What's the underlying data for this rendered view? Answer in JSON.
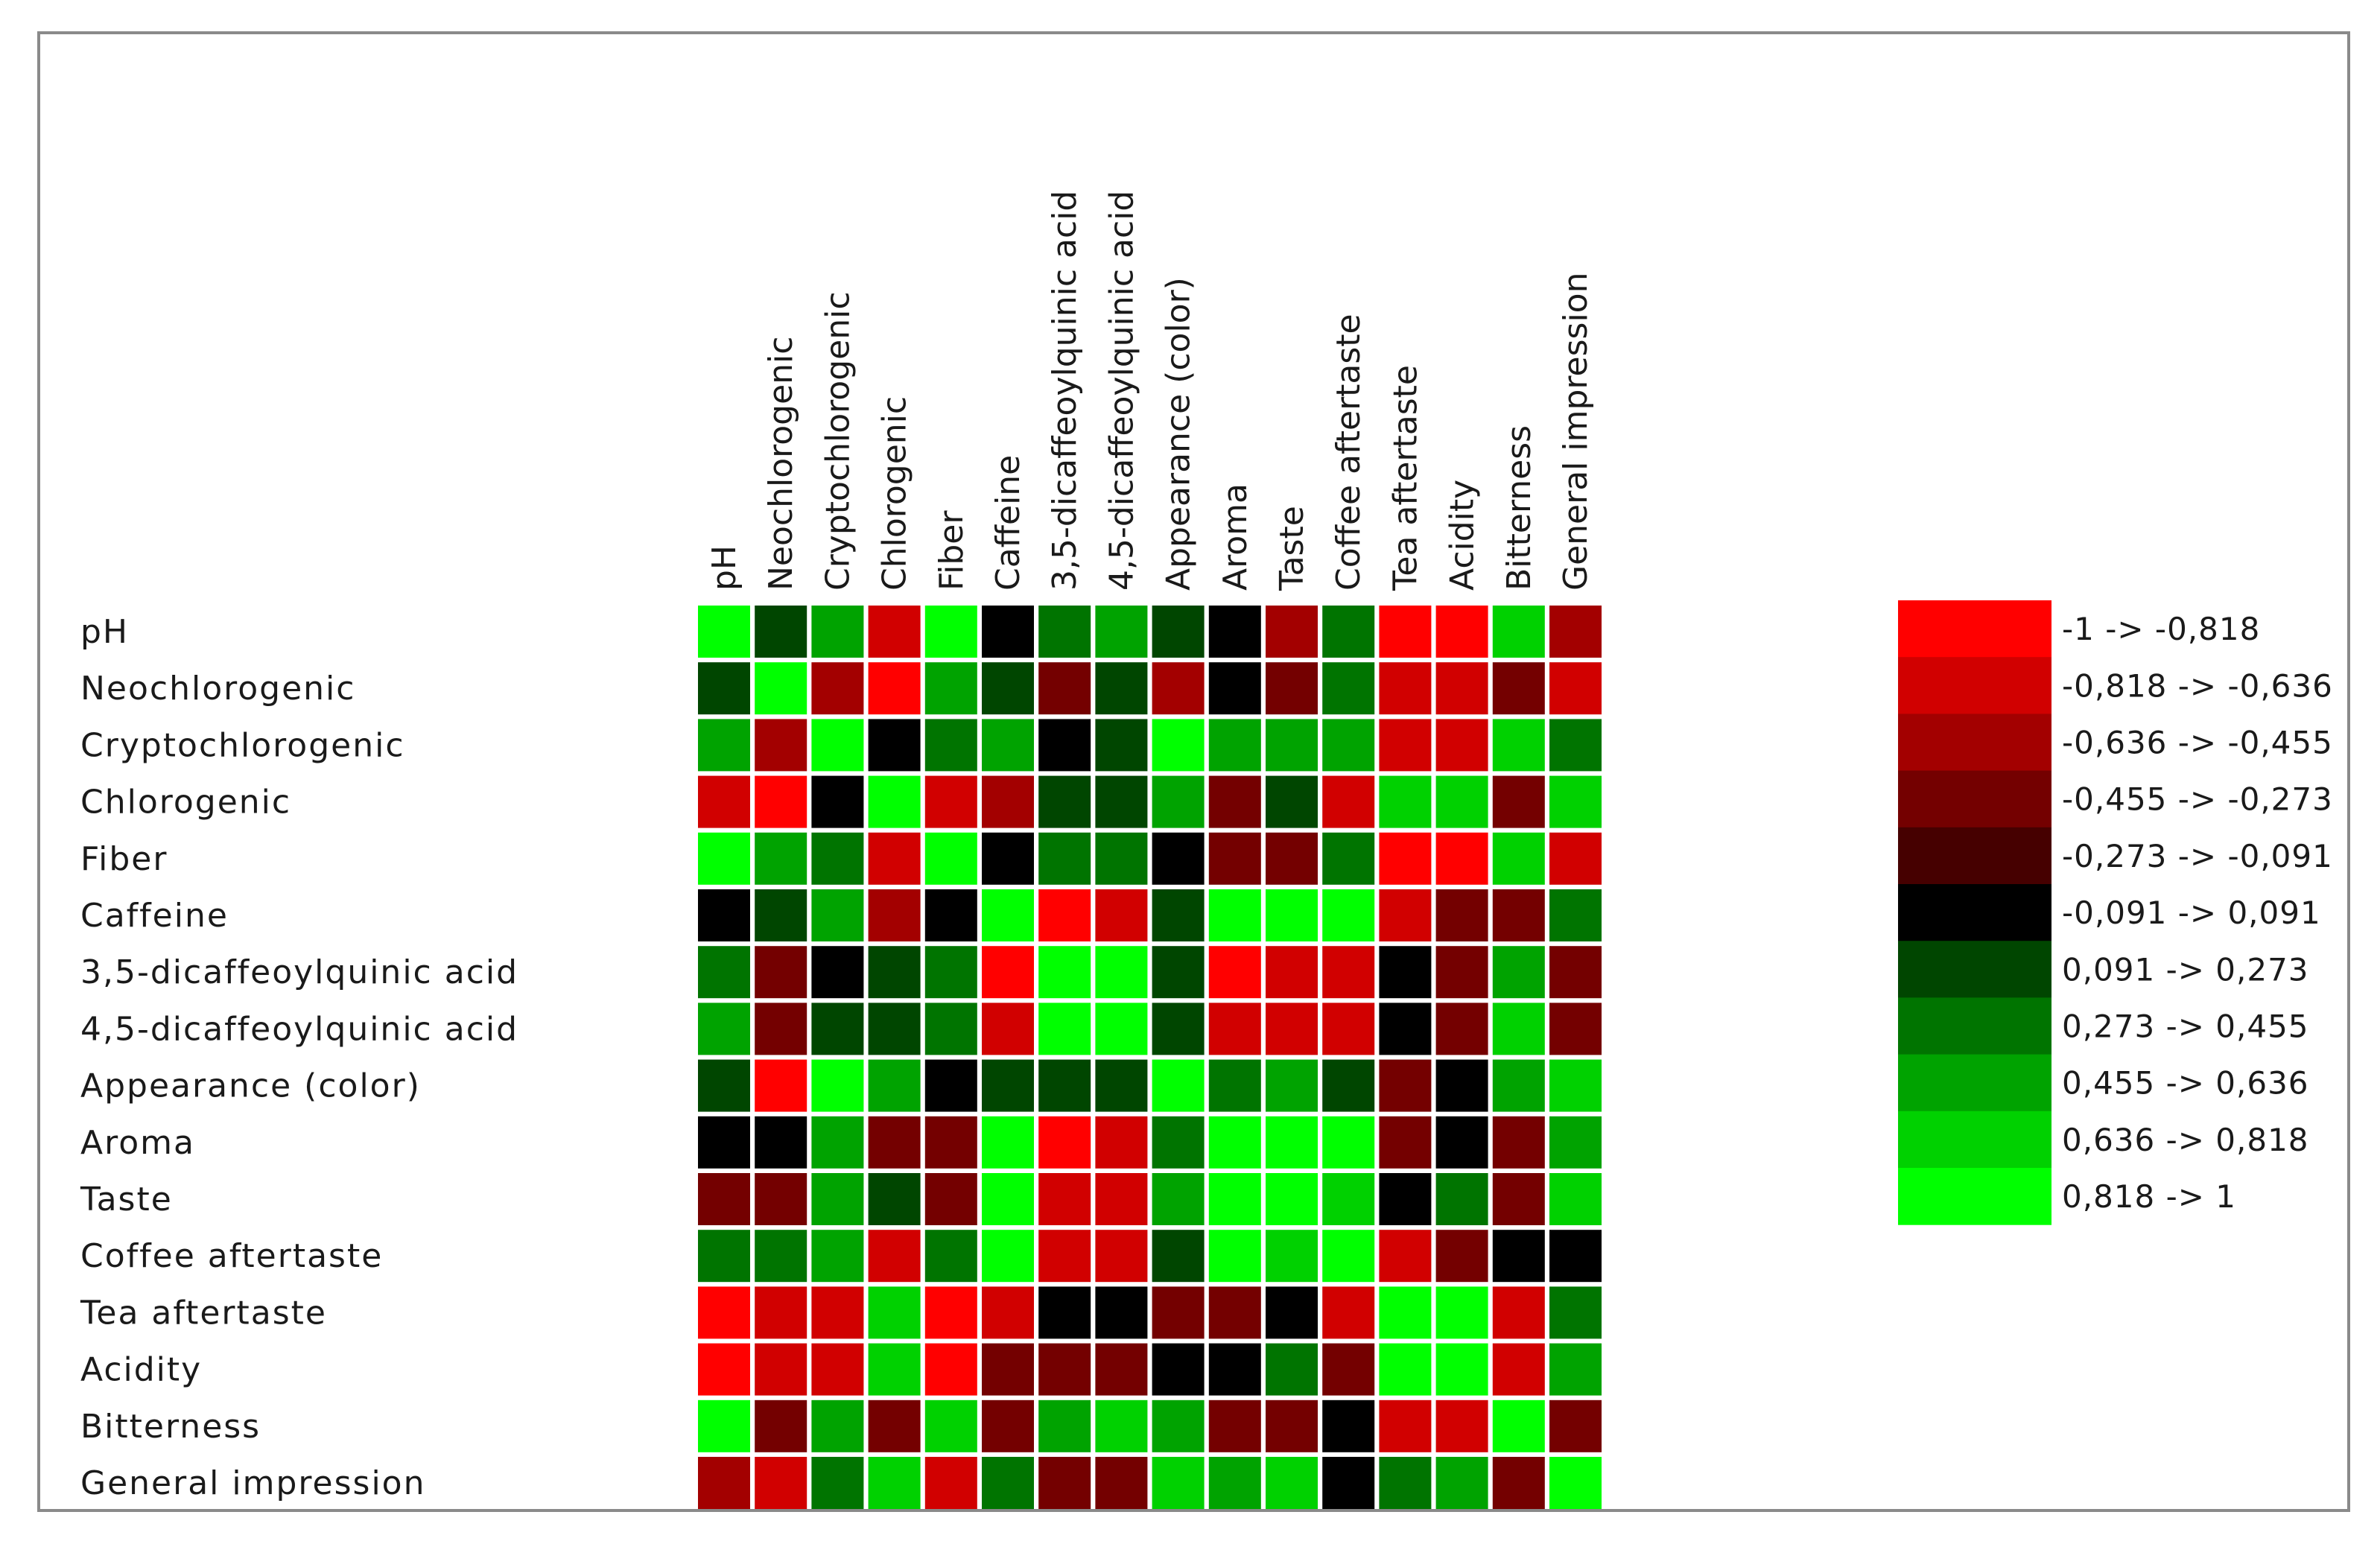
{
  "chart_data": {
    "type": "heatmap",
    "rows": [
      "pH",
      "Neochlorogenic",
      "Cryptochlorogenic",
      "Chlorogenic",
      "Fiber",
      "Caffeine",
      "3,5-dicaffeoylquinic acid",
      "4,5-dicaffeoylquinic acid",
      "Appearance (color)",
      "Aroma",
      "Taste",
      "Coffee aftertaste",
      "Tea aftertaste",
      "Acidity",
      "Bitterness",
      "General impression"
    ],
    "columns": [
      "pH",
      "Neochlorogenic",
      "Cryptochlorogenic",
      "Chlorogenic",
      "Fiber",
      "Caffeine",
      "3,5-dicaffeoylquinic acid",
      "4,5-dicaffeoylquinic acid",
      "Appearance (color)",
      "Aroma",
      "Taste",
      "Coffee aftertaste",
      "Tea aftertaste",
      "Acidity",
      "Bitterness",
      "General impression"
    ],
    "values": [
      [
        0.9,
        0.2,
        0.55,
        -0.7,
        0.9,
        0.0,
        0.35,
        0.55,
        0.2,
        0.0,
        -0.5,
        0.35,
        -0.9,
        -0.9,
        0.8,
        -0.6
      ],
      [
        0.2,
        0.9,
        -0.5,
        -0.9,
        0.55,
        0.2,
        -0.35,
        0.2,
        -0.5,
        0.0,
        -0.4,
        0.35,
        -0.7,
        -0.7,
        -0.35,
        -0.75
      ],
      [
        0.55,
        -0.5,
        0.9,
        0.0,
        0.35,
        0.55,
        0.0,
        0.2,
        0.9,
        0.55,
        0.55,
        0.55,
        -0.7,
        -0.7,
        0.7,
        0.35
      ],
      [
        -0.7,
        -0.9,
        0.0,
        0.9,
        -0.75,
        -0.5,
        0.2,
        0.2,
        0.55,
        -0.35,
        0.2,
        -0.7,
        0.7,
        0.7,
        -0.35,
        0.7
      ],
      [
        0.9,
        0.55,
        0.35,
        -0.75,
        0.9,
        0.0,
        0.35,
        0.35,
        0.0,
        -0.35,
        -0.4,
        0.35,
        -0.9,
        -0.9,
        0.7,
        -0.75
      ],
      [
        0.0,
        0.2,
        0.55,
        -0.5,
        0.0,
        0.9,
        -0.9,
        -0.75,
        0.2,
        0.9,
        0.9,
        0.9,
        -0.7,
        -0.35,
        -0.35,
        0.35
      ],
      [
        0.35,
        -0.35,
        0.0,
        0.2,
        0.35,
        -0.9,
        0.9,
        0.9,
        0.2,
        -0.9,
        -0.75,
        -0.75,
        0.0,
        -0.4,
        0.55,
        -0.4
      ],
      [
        0.55,
        -0.35,
        0.2,
        0.2,
        0.35,
        -0.75,
        0.9,
        0.9,
        0.2,
        -0.75,
        -0.75,
        -0.75,
        0.0,
        -0.4,
        0.7,
        -0.4
      ],
      [
        0.2,
        -0.9,
        0.9,
        0.55,
        0.0,
        0.2,
        0.2,
        0.2,
        0.9,
        0.35,
        0.55,
        0.2,
        -0.35,
        0.0,
        0.55,
        0.7
      ],
      [
        0.0,
        0.0,
        0.55,
        -0.35,
        -0.4,
        0.9,
        -0.9,
        -0.75,
        0.35,
        0.9,
        0.9,
        0.9,
        -0.4,
        0.0,
        -0.35,
        0.55
      ],
      [
        -0.4,
        -0.4,
        0.55,
        0.2,
        -0.4,
        0.9,
        -0.75,
        -0.75,
        0.55,
        0.9,
        0.9,
        0.7,
        0.0,
        0.35,
        -0.35,
        0.7
      ],
      [
        0.35,
        0.35,
        0.55,
        -0.7,
        0.35,
        0.9,
        -0.75,
        -0.75,
        0.2,
        0.9,
        0.7,
        0.9,
        -0.75,
        -0.4,
        0.0,
        0.0
      ],
      [
        -0.9,
        -0.7,
        -0.7,
        0.7,
        -0.9,
        -0.7,
        0.0,
        0.0,
        -0.35,
        -0.4,
        0.0,
        -0.75,
        0.9,
        0.9,
        -0.75,
        0.35
      ],
      [
        -0.9,
        -0.7,
        -0.7,
        0.7,
        -0.9,
        -0.35,
        -0.4,
        -0.4,
        0.0,
        0.0,
        0.35,
        -0.4,
        0.9,
        0.9,
        -0.75,
        0.55
      ],
      [
        0.9,
        -0.35,
        0.55,
        -0.35,
        0.7,
        -0.35,
        0.55,
        0.7,
        0.55,
        -0.35,
        -0.35,
        0.0,
        -0.75,
        -0.75,
        0.9,
        -0.4
      ],
      [
        -0.6,
        -0.75,
        0.35,
        0.7,
        -0.75,
        0.35,
        -0.4,
        -0.4,
        0.7,
        0.55,
        0.7,
        0.0,
        0.35,
        0.55,
        -0.35,
        0.9
      ]
    ],
    "legend": [
      {
        "label": "-1 -> -0,818",
        "color": "#ff0000"
      },
      {
        "label": "-0,818 -> -0,636",
        "color": "#d10000"
      },
      {
        "label": "-0,636 -> -0,455",
        "color": "#a30000"
      },
      {
        "label": "-0,455 -> -0,273",
        "color": "#740000"
      },
      {
        "label": "-0,273 -> -0,091",
        "color": "#460000"
      },
      {
        "label": "-0,091 -> 0,091",
        "color": "#000000"
      },
      {
        "label": "0,091 -> 0,273",
        "color": "#004600"
      },
      {
        "label": "0,273 -> 0,455",
        "color": "#007400"
      },
      {
        "label": "0,455 -> 0,636",
        "color": "#00a300"
      },
      {
        "label": "0,636 -> 0,818",
        "color": "#00d100"
      },
      {
        "label": "0,818 -> 1",
        "color": "#00ff00"
      }
    ],
    "legend_placement": "right",
    "range": [
      -1,
      1
    ]
  }
}
